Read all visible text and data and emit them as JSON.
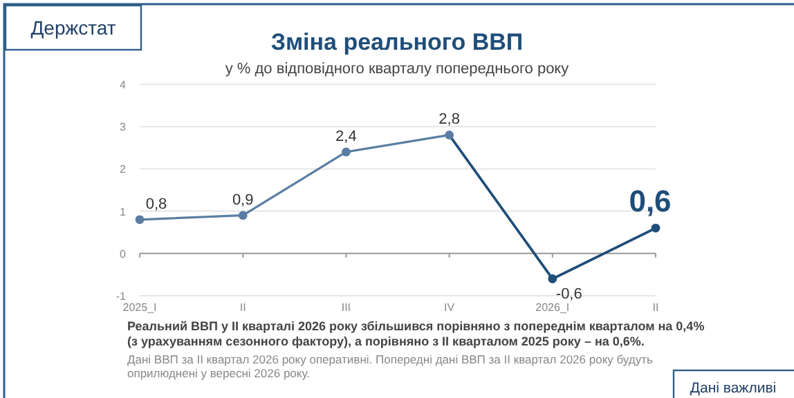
{
  "chart_data": {
    "type": "line",
    "title": "Зміна реального ВВП",
    "subtitle": "у % до відповідного кварталу попереднього року",
    "categories": [
      "2025_I",
      "II",
      "III",
      "IV",
      "2026_I",
      "II"
    ],
    "series": [
      {
        "color": "#5a7ea3",
        "colors": [
          "#5a7ea3",
          "#5a7ea3",
          "#5a7ea3",
          "#5a7ea3",
          "#1f4e79",
          "#1f4e79"
        ],
        "values": [
          0.8,
          0.9,
          2.4,
          2.8,
          -0.6,
          0.6
        ],
        "value_labels": [
          "0,8",
          "0,9",
          "2,4",
          "2,8",
          "-0,6",
          "0,6"
        ]
      }
    ],
    "ylim": [
      -1,
      4
    ],
    "yticks": [
      -1,
      0,
      1,
      2,
      3,
      4
    ],
    "grid": "y",
    "marker": "circle",
    "line_style": "solid",
    "annotations": [
      "Держстат",
      "Реальний ВВП у II кварталі 2026 року збільшився порівняно з попереднім кварталом на 0,4% (з урахуванням сезонного фактору), а порівняно з II кварталом 2025 року – на 0,6%.",
      "Дані ВВП за II квартал 2026 року оперативні. Попередні дані ВВП за II квартал 2026 року будуть оприлюднені у вересні 2026 року.",
      "Дані важливі"
    ]
  }
}
